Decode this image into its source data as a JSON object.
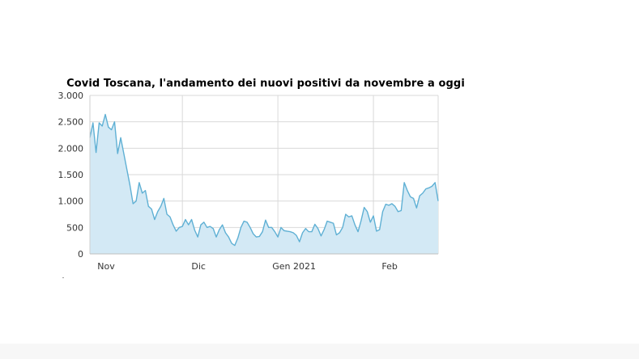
{
  "chart_data": {
    "type": "area",
    "title": "Covid Toscana, l'andamento dei nuovi positivi da novembre a oggi",
    "xlabel": "",
    "ylabel": "",
    "x_start": "2020-11-01",
    "ylim": [
      0,
      3000
    ],
    "y_ticks": [
      {
        "value": 0,
        "label": "0"
      },
      {
        "value": 500,
        "label": "500"
      },
      {
        "value": 1000,
        "label": "1.000"
      },
      {
        "value": 1500,
        "label": "1.500"
      },
      {
        "value": 2000,
        "label": "2.000"
      },
      {
        "value": 2500,
        "label": "2.500"
      },
      {
        "value": 3000,
        "label": "3.000"
      }
    ],
    "x_ticks": [
      {
        "label": "Nov",
        "date": "2020-11-01"
      },
      {
        "label": "Dic",
        "date": "2020-12-01"
      },
      {
        "label": "Gen 2021",
        "date": "2021-01-01"
      },
      {
        "label": "Feb",
        "date": "2021-02-01"
      }
    ],
    "grid": true,
    "fill_color": "#d3e9f5",
    "line_color": "#5fb0d4",
    "series": [
      {
        "name": "",
        "values": [
          2200,
          2480,
          1920,
          2480,
          2420,
          2640,
          2400,
          2350,
          2500,
          1900,
          2200,
          1900,
          1600,
          1300,
          950,
          1000,
          1350,
          1150,
          1200,
          900,
          850,
          650,
          800,
          900,
          1050,
          750,
          700,
          550,
          430,
          500,
          520,
          650,
          550,
          650,
          450,
          320,
          550,
          600,
          500,
          520,
          480,
          320,
          460,
          550,
          400,
          320,
          200,
          160,
          300,
          500,
          620,
          600,
          500,
          380,
          320,
          330,
          420,
          640,
          500,
          500,
          420,
          320,
          500,
          440,
          430,
          420,
          400,
          350,
          230,
          400,
          480,
          420,
          420,
          560,
          480,
          340,
          460,
          620,
          600,
          580,
          360,
          400,
          500,
          750,
          700,
          720,
          550,
          420,
          630,
          880,
          800,
          600,
          720,
          430,
          460,
          800,
          940,
          920,
          950,
          900,
          800,
          820,
          1350,
          1200,
          1080,
          1050,
          870,
          1100,
          1150,
          1230,
          1250,
          1280,
          1350,
          1000
        ]
      }
    ]
  }
}
